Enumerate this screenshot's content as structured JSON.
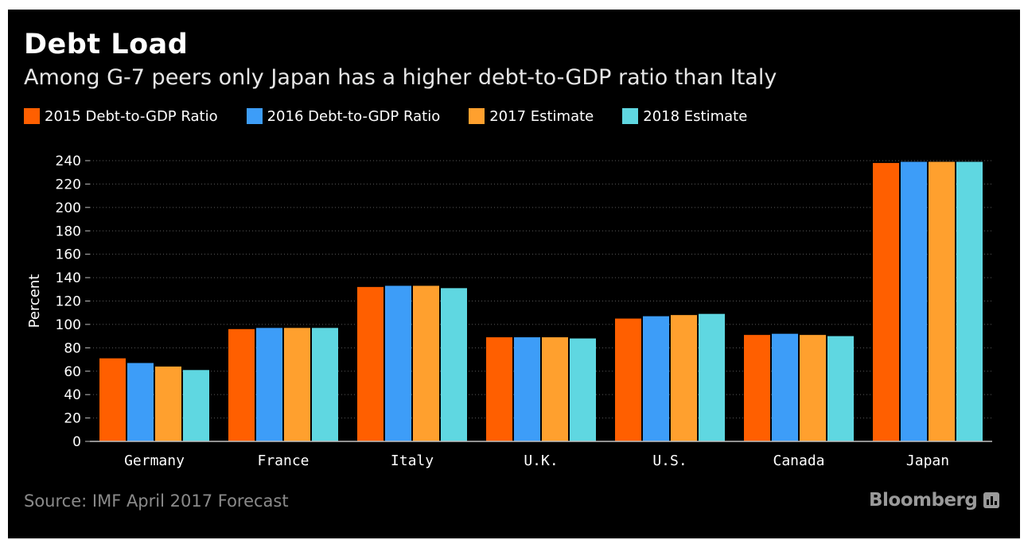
{
  "header": {
    "title": "Debt Load",
    "subtitle": "Among G-7 peers only Japan has a higher debt-to-GDP ratio than Italy"
  },
  "footer": {
    "source": "Source: IMF April 2017 Forecast",
    "brand": "Bloomberg",
    "brand_icon": "bloomberg-chart-icon"
  },
  "colors": {
    "background": "#000000",
    "series": [
      "#ff5f00",
      "#3d9df8",
      "#ffa02e",
      "#5fd7e1"
    ],
    "gridline": "#5a5a5a",
    "axis": "#bfbfbf"
  },
  "chart_data": {
    "type": "bar",
    "title": "Debt Load",
    "subtitle": "Among G-7 peers only Japan has a higher debt-to-GDP ratio than Italy",
    "xlabel": "",
    "ylabel": "Percent",
    "ylim": [
      0,
      240
    ],
    "yticks": [
      0,
      20,
      40,
      60,
      80,
      100,
      120,
      140,
      160,
      180,
      200,
      220,
      240
    ],
    "grid": true,
    "legend_position": "top-left",
    "categories": [
      "Germany",
      "France",
      "Italy",
      "U.K.",
      "U.S.",
      "Canada",
      "Japan"
    ],
    "series": [
      {
        "name": "2015 Debt-to-GDP Ratio",
        "values": [
          71,
          96,
          132,
          89,
          105,
          91,
          238
        ]
      },
      {
        "name": "2016 Debt-to-GDP Ratio",
        "values": [
          67,
          97,
          133,
          89,
          107,
          92,
          239
        ]
      },
      {
        "name": "2017 Estimate",
        "values": [
          64,
          97,
          133,
          89,
          108,
          91,
          239
        ]
      },
      {
        "name": "2018 Estimate",
        "values": [
          61,
          97,
          131,
          88,
          109,
          90,
          239
        ]
      }
    ]
  }
}
